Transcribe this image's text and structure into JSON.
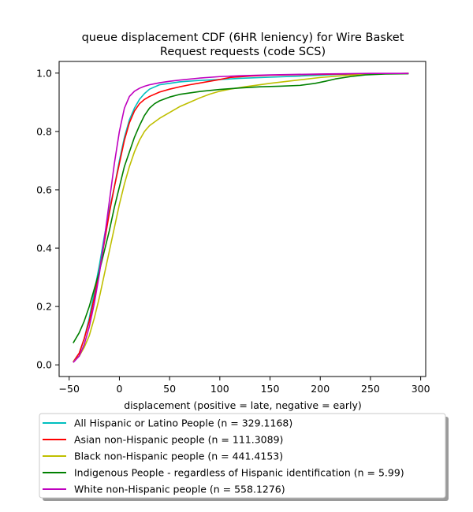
{
  "chart_data": {
    "type": "line",
    "title_lines": [
      "queue displacement CDF (6HR leniency) for Wire Basket",
      "Request  requests (code SCS)"
    ],
    "xlabel": "displacement (positive = late, negative = early)",
    "ylabel": "",
    "xlim": [
      -60,
      305
    ],
    "ylim": [
      -0.04,
      1.04
    ],
    "xticks": [
      -50,
      0,
      50,
      100,
      150,
      200,
      250,
      300
    ],
    "xtick_labels": [
      "−50",
      "0",
      "50",
      "100",
      "150",
      "200",
      "250",
      "300"
    ],
    "yticks": [
      0.0,
      0.2,
      0.4,
      0.6,
      0.8,
      1.0
    ],
    "ytick_labels": [
      "0.0",
      "0.2",
      "0.4",
      "0.6",
      "0.8",
      "1.0"
    ],
    "grid": false,
    "legend_position": "below-plot",
    "series": [
      {
        "name": "All Hispanic or Latino People (n = 329.1168)",
        "color": "#00bfbf",
        "points": [
          [
            -46,
            0.01
          ],
          [
            -40,
            0.04
          ],
          [
            -35,
            0.09
          ],
          [
            -30,
            0.16
          ],
          [
            -25,
            0.25
          ],
          [
            -20,
            0.34
          ],
          [
            -15,
            0.44
          ],
          [
            -10,
            0.53
          ],
          [
            -5,
            0.61
          ],
          [
            0,
            0.7
          ],
          [
            5,
            0.78
          ],
          [
            10,
            0.84
          ],
          [
            15,
            0.88
          ],
          [
            20,
            0.91
          ],
          [
            25,
            0.93
          ],
          [
            30,
            0.945
          ],
          [
            40,
            0.96
          ],
          [
            50,
            0.965
          ],
          [
            60,
            0.97
          ],
          [
            80,
            0.975
          ],
          [
            100,
            0.978
          ],
          [
            120,
            0.982
          ],
          [
            150,
            0.986
          ],
          [
            180,
            0.99
          ],
          [
            200,
            0.993
          ],
          [
            220,
            0.996
          ],
          [
            250,
            0.998
          ],
          [
            288,
            0.999
          ]
        ]
      },
      {
        "name": "Asian non-Hispanic people (n = 111.3089)",
        "color": "#ff0000",
        "points": [
          [
            -46,
            0.01
          ],
          [
            -40,
            0.04
          ],
          [
            -35,
            0.09
          ],
          [
            -30,
            0.15
          ],
          [
            -25,
            0.23
          ],
          [
            -20,
            0.32
          ],
          [
            -15,
            0.42
          ],
          [
            -10,
            0.52
          ],
          [
            -5,
            0.61
          ],
          [
            0,
            0.69
          ],
          [
            5,
            0.77
          ],
          [
            10,
            0.83
          ],
          [
            15,
            0.87
          ],
          [
            20,
            0.895
          ],
          [
            25,
            0.91
          ],
          [
            30,
            0.92
          ],
          [
            40,
            0.935
          ],
          [
            50,
            0.945
          ],
          [
            60,
            0.953
          ],
          [
            70,
            0.96
          ],
          [
            80,
            0.966
          ],
          [
            100,
            0.978
          ],
          [
            110,
            0.985
          ],
          [
            130,
            0.99
          ],
          [
            150,
            0.993
          ],
          [
            200,
            0.996
          ],
          [
            250,
            0.998
          ],
          [
            288,
            0.999
          ]
        ]
      },
      {
        "name": "Black non-Hispanic people (n = 441.4153)",
        "color": "#bfbf00",
        "points": [
          [
            -46,
            0.01
          ],
          [
            -40,
            0.03
          ],
          [
            -35,
            0.06
          ],
          [
            -30,
            0.1
          ],
          [
            -25,
            0.16
          ],
          [
            -20,
            0.23
          ],
          [
            -15,
            0.31
          ],
          [
            -10,
            0.39
          ],
          [
            -5,
            0.47
          ],
          [
            0,
            0.55
          ],
          [
            5,
            0.62
          ],
          [
            10,
            0.68
          ],
          [
            15,
            0.73
          ],
          [
            20,
            0.77
          ],
          [
            25,
            0.8
          ],
          [
            30,
            0.82
          ],
          [
            40,
            0.845
          ],
          [
            50,
            0.865
          ],
          [
            60,
            0.885
          ],
          [
            70,
            0.9
          ],
          [
            80,
            0.915
          ],
          [
            90,
            0.928
          ],
          [
            100,
            0.938
          ],
          [
            110,
            0.945
          ],
          [
            125,
            0.953
          ],
          [
            150,
            0.965
          ],
          [
            175,
            0.975
          ],
          [
            200,
            0.985
          ],
          [
            225,
            0.992
          ],
          [
            250,
            0.997
          ],
          [
            288,
            0.999
          ]
        ]
      },
      {
        "name": "Indigenous People - regardless of Hispanic identification (n = 5.99)",
        "color": "#008000",
        "points": [
          [
            -46,
            0.075
          ],
          [
            -40,
            0.11
          ],
          [
            -35,
            0.15
          ],
          [
            -30,
            0.2
          ],
          [
            -25,
            0.26
          ],
          [
            -20,
            0.32
          ],
          [
            -15,
            0.39
          ],
          [
            -10,
            0.46
          ],
          [
            -5,
            0.54
          ],
          [
            0,
            0.61
          ],
          [
            5,
            0.68
          ],
          [
            10,
            0.73
          ],
          [
            15,
            0.78
          ],
          [
            20,
            0.82
          ],
          [
            25,
            0.855
          ],
          [
            30,
            0.88
          ],
          [
            35,
            0.895
          ],
          [
            40,
            0.905
          ],
          [
            50,
            0.918
          ],
          [
            60,
            0.927
          ],
          [
            80,
            0.937
          ],
          [
            100,
            0.944
          ],
          [
            120,
            0.949
          ],
          [
            140,
            0.953
          ],
          [
            160,
            0.955
          ],
          [
            180,
            0.958
          ],
          [
            195,
            0.965
          ],
          [
            205,
            0.972
          ],
          [
            215,
            0.98
          ],
          [
            230,
            0.988
          ],
          [
            245,
            0.994
          ],
          [
            265,
            0.997
          ],
          [
            288,
            0.998
          ]
        ]
      },
      {
        "name": "White non-Hispanic people (n = 558.1276)",
        "color": "#bf00bf",
        "points": [
          [
            -46,
            0.008
          ],
          [
            -40,
            0.03
          ],
          [
            -35,
            0.07
          ],
          [
            -30,
            0.13
          ],
          [
            -25,
            0.21
          ],
          [
            -20,
            0.31
          ],
          [
            -15,
            0.43
          ],
          [
            -10,
            0.56
          ],
          [
            -5,
            0.69
          ],
          [
            0,
            0.8
          ],
          [
            5,
            0.88
          ],
          [
            10,
            0.92
          ],
          [
            15,
            0.938
          ],
          [
            20,
            0.948
          ],
          [
            25,
            0.955
          ],
          [
            30,
            0.96
          ],
          [
            40,
            0.967
          ],
          [
            50,
            0.972
          ],
          [
            60,
            0.976
          ],
          [
            80,
            0.983
          ],
          [
            100,
            0.988
          ],
          [
            120,
            0.991
          ],
          [
            150,
            0.994
          ],
          [
            200,
            0.997
          ],
          [
            250,
            0.999
          ],
          [
            288,
            0.999
          ]
        ]
      }
    ]
  }
}
